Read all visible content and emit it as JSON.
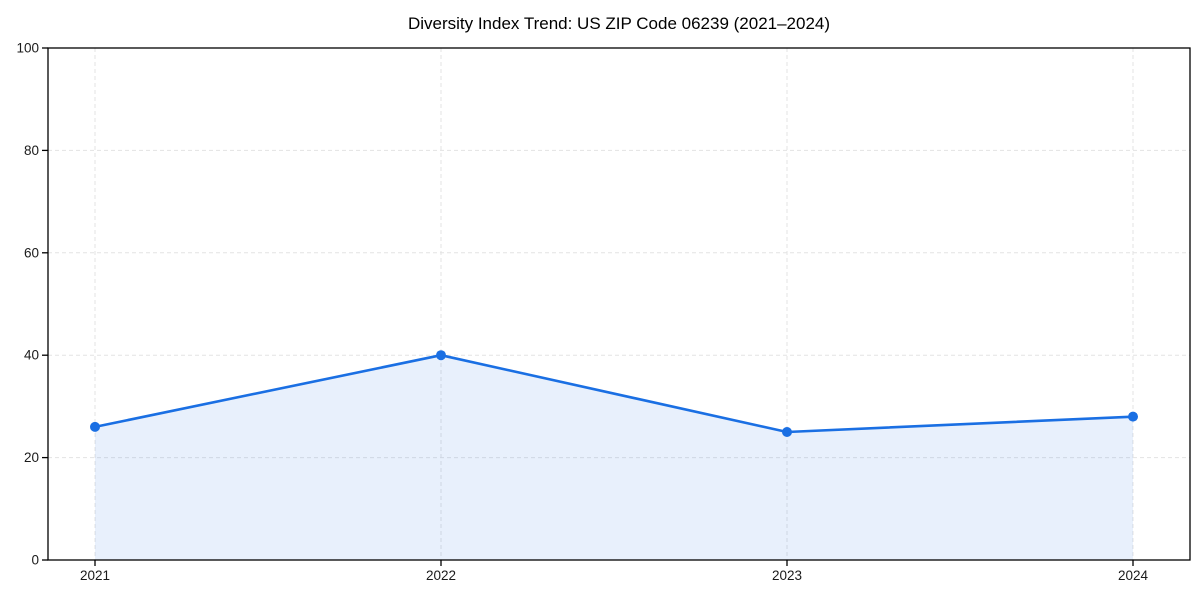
{
  "chart_data": {
    "type": "line",
    "title": "Diversity Index Trend: US ZIP Code 06239 (2021–2024)",
    "xlabel": "",
    "ylabel": "",
    "categories": [
      "2021",
      "2022",
      "2023",
      "2024"
    ],
    "series": [
      {
        "values": [
          26,
          40,
          25,
          28
        ]
      }
    ],
    "ylim": [
      0,
      100
    ],
    "yticks": [
      0,
      20,
      40,
      60,
      80,
      100
    ],
    "grid": true,
    "grid_style": "dashed",
    "legend": "none",
    "area_fill": true,
    "markers": true,
    "colors": {
      "line": "#1a6fe3",
      "marker": "#1a6fe3",
      "fill": "#1a6fe3",
      "fill_opacity": 0.1,
      "grid": "#e3e3e3",
      "axis": "#000000",
      "text": "#1a1a1a",
      "background": "#ffffff"
    }
  }
}
